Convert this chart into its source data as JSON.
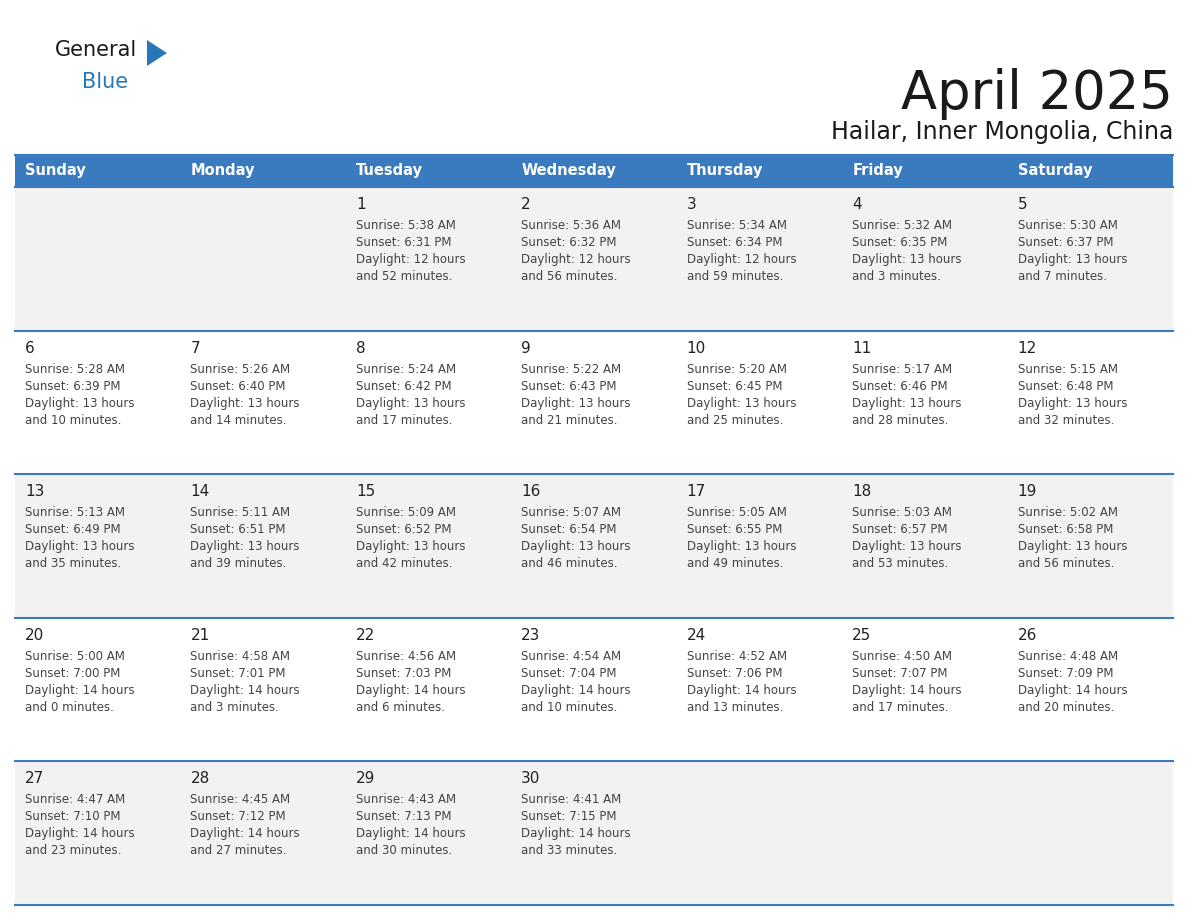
{
  "title": "April 2025",
  "subtitle": "Hailar, Inner Mongolia, China",
  "days_of_week": [
    "Sunday",
    "Monday",
    "Tuesday",
    "Wednesday",
    "Thursday",
    "Friday",
    "Saturday"
  ],
  "header_bg": "#3A7BBF",
  "header_text": "#FFFFFF",
  "row_bg_odd": "#F2F2F2",
  "row_bg_even": "#FFFFFF",
  "cell_text_color": "#444444",
  "day_num_color": "#222222",
  "divider_color": "#3A7BBF",
  "weeks": [
    [
      {
        "day": null,
        "info": null
      },
      {
        "day": null,
        "info": null
      },
      {
        "day": 1,
        "info": {
          "sunrise": "5:38 AM",
          "sunset": "6:31 PM",
          "daylight": "12 hours\nand 52 minutes."
        }
      },
      {
        "day": 2,
        "info": {
          "sunrise": "5:36 AM",
          "sunset": "6:32 PM",
          "daylight": "12 hours\nand 56 minutes."
        }
      },
      {
        "day": 3,
        "info": {
          "sunrise": "5:34 AM",
          "sunset": "6:34 PM",
          "daylight": "12 hours\nand 59 minutes."
        }
      },
      {
        "day": 4,
        "info": {
          "sunrise": "5:32 AM",
          "sunset": "6:35 PM",
          "daylight": "13 hours\nand 3 minutes."
        }
      },
      {
        "day": 5,
        "info": {
          "sunrise": "5:30 AM",
          "sunset": "6:37 PM",
          "daylight": "13 hours\nand 7 minutes."
        }
      }
    ],
    [
      {
        "day": 6,
        "info": {
          "sunrise": "5:28 AM",
          "sunset": "6:39 PM",
          "daylight": "13 hours\nand 10 minutes."
        }
      },
      {
        "day": 7,
        "info": {
          "sunrise": "5:26 AM",
          "sunset": "6:40 PM",
          "daylight": "13 hours\nand 14 minutes."
        }
      },
      {
        "day": 8,
        "info": {
          "sunrise": "5:24 AM",
          "sunset": "6:42 PM",
          "daylight": "13 hours\nand 17 minutes."
        }
      },
      {
        "day": 9,
        "info": {
          "sunrise": "5:22 AM",
          "sunset": "6:43 PM",
          "daylight": "13 hours\nand 21 minutes."
        }
      },
      {
        "day": 10,
        "info": {
          "sunrise": "5:20 AM",
          "sunset": "6:45 PM",
          "daylight": "13 hours\nand 25 minutes."
        }
      },
      {
        "day": 11,
        "info": {
          "sunrise": "5:17 AM",
          "sunset": "6:46 PM",
          "daylight": "13 hours\nand 28 minutes."
        }
      },
      {
        "day": 12,
        "info": {
          "sunrise": "5:15 AM",
          "sunset": "6:48 PM",
          "daylight": "13 hours\nand 32 minutes."
        }
      }
    ],
    [
      {
        "day": 13,
        "info": {
          "sunrise": "5:13 AM",
          "sunset": "6:49 PM",
          "daylight": "13 hours\nand 35 minutes."
        }
      },
      {
        "day": 14,
        "info": {
          "sunrise": "5:11 AM",
          "sunset": "6:51 PM",
          "daylight": "13 hours\nand 39 minutes."
        }
      },
      {
        "day": 15,
        "info": {
          "sunrise": "5:09 AM",
          "sunset": "6:52 PM",
          "daylight": "13 hours\nand 42 minutes."
        }
      },
      {
        "day": 16,
        "info": {
          "sunrise": "5:07 AM",
          "sunset": "6:54 PM",
          "daylight": "13 hours\nand 46 minutes."
        }
      },
      {
        "day": 17,
        "info": {
          "sunrise": "5:05 AM",
          "sunset": "6:55 PM",
          "daylight": "13 hours\nand 49 minutes."
        }
      },
      {
        "day": 18,
        "info": {
          "sunrise": "5:03 AM",
          "sunset": "6:57 PM",
          "daylight": "13 hours\nand 53 minutes."
        }
      },
      {
        "day": 19,
        "info": {
          "sunrise": "5:02 AM",
          "sunset": "6:58 PM",
          "daylight": "13 hours\nand 56 minutes."
        }
      }
    ],
    [
      {
        "day": 20,
        "info": {
          "sunrise": "5:00 AM",
          "sunset": "7:00 PM",
          "daylight": "14 hours\nand 0 minutes."
        }
      },
      {
        "day": 21,
        "info": {
          "sunrise": "4:58 AM",
          "sunset": "7:01 PM",
          "daylight": "14 hours\nand 3 minutes."
        }
      },
      {
        "day": 22,
        "info": {
          "sunrise": "4:56 AM",
          "sunset": "7:03 PM",
          "daylight": "14 hours\nand 6 minutes."
        }
      },
      {
        "day": 23,
        "info": {
          "sunrise": "4:54 AM",
          "sunset": "7:04 PM",
          "daylight": "14 hours\nand 10 minutes."
        }
      },
      {
        "day": 24,
        "info": {
          "sunrise": "4:52 AM",
          "sunset": "7:06 PM",
          "daylight": "14 hours\nand 13 minutes."
        }
      },
      {
        "day": 25,
        "info": {
          "sunrise": "4:50 AM",
          "sunset": "7:07 PM",
          "daylight": "14 hours\nand 17 minutes."
        }
      },
      {
        "day": 26,
        "info": {
          "sunrise": "4:48 AM",
          "sunset": "7:09 PM",
          "daylight": "14 hours\nand 20 minutes."
        }
      }
    ],
    [
      {
        "day": 27,
        "info": {
          "sunrise": "4:47 AM",
          "sunset": "7:10 PM",
          "daylight": "14 hours\nand 23 minutes."
        }
      },
      {
        "day": 28,
        "info": {
          "sunrise": "4:45 AM",
          "sunset": "7:12 PM",
          "daylight": "14 hours\nand 27 minutes."
        }
      },
      {
        "day": 29,
        "info": {
          "sunrise": "4:43 AM",
          "sunset": "7:13 PM",
          "daylight": "14 hours\nand 30 minutes."
        }
      },
      {
        "day": 30,
        "info": {
          "sunrise": "4:41 AM",
          "sunset": "7:15 PM",
          "daylight": "14 hours\nand 33 minutes."
        }
      },
      {
        "day": null,
        "info": null
      },
      {
        "day": null,
        "info": null
      },
      {
        "day": null,
        "info": null
      }
    ]
  ]
}
